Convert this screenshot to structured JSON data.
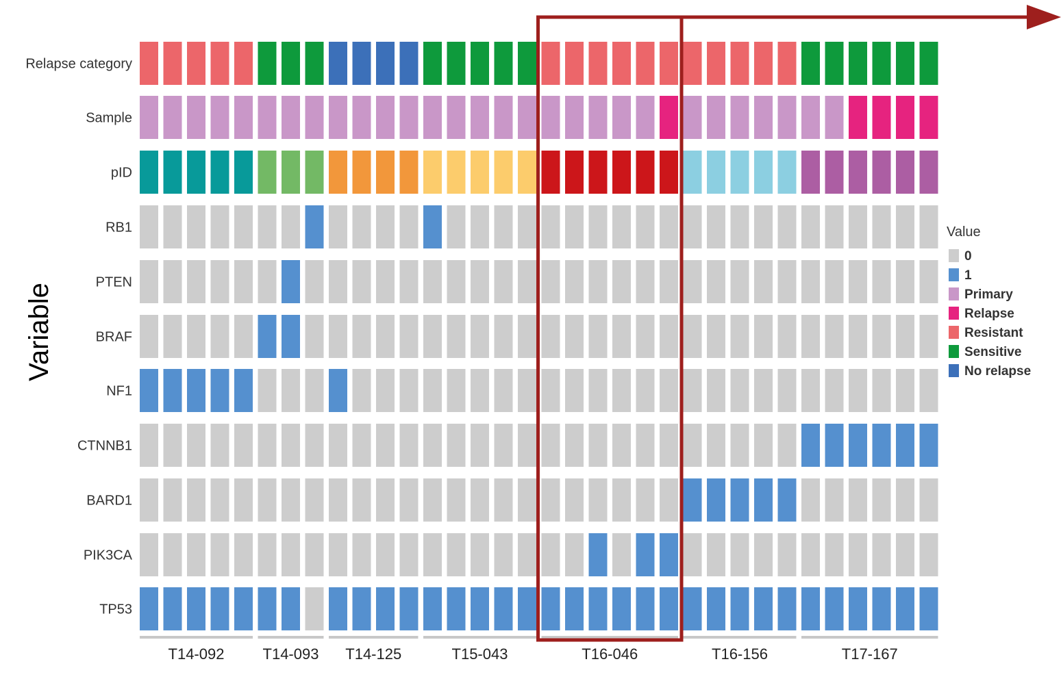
{
  "chart_data": {
    "type": "heatmap",
    "ylabel": "Variable",
    "variables": [
      "Relapse category",
      "Sample",
      "pID",
      "RB1",
      "PTEN",
      "BRAF",
      "NF1",
      "CTNNB1",
      "BARD1",
      "PIK3CA",
      "TP53"
    ],
    "patients": [
      {
        "id": "T14-092",
        "n": 5
      },
      {
        "id": "T14-093",
        "n": 3
      },
      {
        "id": "T14-125",
        "n": 4
      },
      {
        "id": "T15-043",
        "n": 5
      },
      {
        "id": "T16-046",
        "n": 6
      },
      {
        "id": "T16-156",
        "n": 5
      },
      {
        "id": "T17-167",
        "n": 6
      }
    ],
    "rows": {
      "Relapse category": [
        "Resistant",
        "Resistant",
        "Resistant",
        "Resistant",
        "Resistant",
        "Sensitive",
        "Sensitive",
        "Sensitive",
        "No relapse",
        "No relapse",
        "No relapse",
        "No relapse",
        "Sensitive",
        "Sensitive",
        "Sensitive",
        "Sensitive",
        "Sensitive",
        "Resistant",
        "Resistant",
        "Resistant",
        "Resistant",
        "Resistant",
        "Resistant",
        "Resistant",
        "Resistant",
        "Resistant",
        "Resistant",
        "Resistant",
        "Sensitive",
        "Sensitive",
        "Sensitive",
        "Sensitive",
        "Sensitive",
        "Sensitive"
      ],
      "Sample": [
        "Primary",
        "Primary",
        "Primary",
        "Primary",
        "Primary",
        "Primary",
        "Primary",
        "Primary",
        "Primary",
        "Primary",
        "Primary",
        "Primary",
        "Primary",
        "Primary",
        "Primary",
        "Primary",
        "Primary",
        "Primary",
        "Primary",
        "Primary",
        "Primary",
        "Primary",
        "Relapse",
        "Primary",
        "Primary",
        "Primary",
        "Primary",
        "Primary",
        "Primary",
        "Primary",
        "Relapse",
        "Relapse",
        "Relapse",
        "Relapse"
      ],
      "RB1": [
        "0",
        "0",
        "0",
        "0",
        "0",
        "0",
        "0",
        "1",
        "0",
        "0",
        "0",
        "0",
        "1",
        "0",
        "0",
        "0",
        "0",
        "0",
        "0",
        "0",
        "0",
        "0",
        "0",
        "0",
        "0",
        "0",
        "0",
        "0",
        "0",
        "0",
        "0",
        "0",
        "0",
        "0"
      ],
      "PTEN": [
        "0",
        "0",
        "0",
        "0",
        "0",
        "0",
        "1",
        "0",
        "0",
        "0",
        "0",
        "0",
        "0",
        "0",
        "0",
        "0",
        "0",
        "0",
        "0",
        "0",
        "0",
        "0",
        "0",
        "0",
        "0",
        "0",
        "0",
        "0",
        "0",
        "0",
        "0",
        "0",
        "0",
        "0"
      ],
      "BRAF": [
        "0",
        "0",
        "0",
        "0",
        "0",
        "1",
        "1",
        "0",
        "0",
        "0",
        "0",
        "0",
        "0",
        "0",
        "0",
        "0",
        "0",
        "0",
        "0",
        "0",
        "0",
        "0",
        "0",
        "0",
        "0",
        "0",
        "0",
        "0",
        "0",
        "0",
        "0",
        "0",
        "0",
        "0"
      ],
      "NF1": [
        "1",
        "1",
        "1",
        "1",
        "1",
        "0",
        "0",
        "0",
        "1",
        "0",
        "0",
        "0",
        "0",
        "0",
        "0",
        "0",
        "0",
        "0",
        "0",
        "0",
        "0",
        "0",
        "0",
        "0",
        "0",
        "0",
        "0",
        "0",
        "0",
        "0",
        "0",
        "0",
        "0",
        "0"
      ],
      "CTNNB1": [
        "0",
        "0",
        "0",
        "0",
        "0",
        "0",
        "0",
        "0",
        "0",
        "0",
        "0",
        "0",
        "0",
        "0",
        "0",
        "0",
        "0",
        "0",
        "0",
        "0",
        "0",
        "0",
        "0",
        "0",
        "0",
        "0",
        "0",
        "0",
        "1",
        "1",
        "1",
        "1",
        "1",
        "1"
      ],
      "BARD1": [
        "0",
        "0",
        "0",
        "0",
        "0",
        "0",
        "0",
        "0",
        "0",
        "0",
        "0",
        "0",
        "0",
        "0",
        "0",
        "0",
        "0",
        "0",
        "0",
        "0",
        "0",
        "0",
        "0",
        "1",
        "1",
        "1",
        "1",
        "1",
        "0",
        "0",
        "0",
        "0",
        "0",
        "0"
      ],
      "PIK3CA": [
        "0",
        "0",
        "0",
        "0",
        "0",
        "0",
        "0",
        "0",
        "0",
        "0",
        "0",
        "0",
        "0",
        "0",
        "0",
        "0",
        "0",
        "0",
        "0",
        "1",
        "0",
        "1",
        "1",
        "0",
        "0",
        "0",
        "0",
        "0",
        "0",
        "0",
        "0",
        "0",
        "0",
        "0"
      ],
      "TP53": [
        "1",
        "1",
        "1",
        "1",
        "1",
        "1",
        "1",
        "0",
        "1",
        "1",
        "1",
        "1",
        "1",
        "1",
        "1",
        "1",
        "1",
        "1",
        "1",
        "1",
        "1",
        "1",
        "1",
        "1",
        "1",
        "1",
        "1",
        "1",
        "1",
        "1",
        "1",
        "1",
        "1",
        "1"
      ]
    },
    "legend": {
      "title": "Value",
      "entries": [
        {
          "label": "0",
          "color": "#cdcdcd"
        },
        {
          "label": "1",
          "color": "#5590cf"
        },
        {
          "label": "Primary",
          "color": "#c997c8"
        },
        {
          "label": "Relapse",
          "color": "#e6237f"
        },
        {
          "label": "Resistant",
          "color": "#ec666a"
        },
        {
          "label": "Sensitive",
          "color": "#0e9a3c"
        },
        {
          "label": "No relapse",
          "color": "#3c70b9"
        }
      ]
    },
    "pid_colors": {
      "T14-092": "#089a9a",
      "T14-093": "#73b965",
      "T14-125": "#f2973b",
      "T15-043": "#fccc6c",
      "T16-046": "#cc161a",
      "T16-156": "#8ccfe1",
      "T17-167": "#ac5ea3"
    },
    "highlight": {
      "patient": "T16-046",
      "color": "#9e1f1d"
    }
  }
}
